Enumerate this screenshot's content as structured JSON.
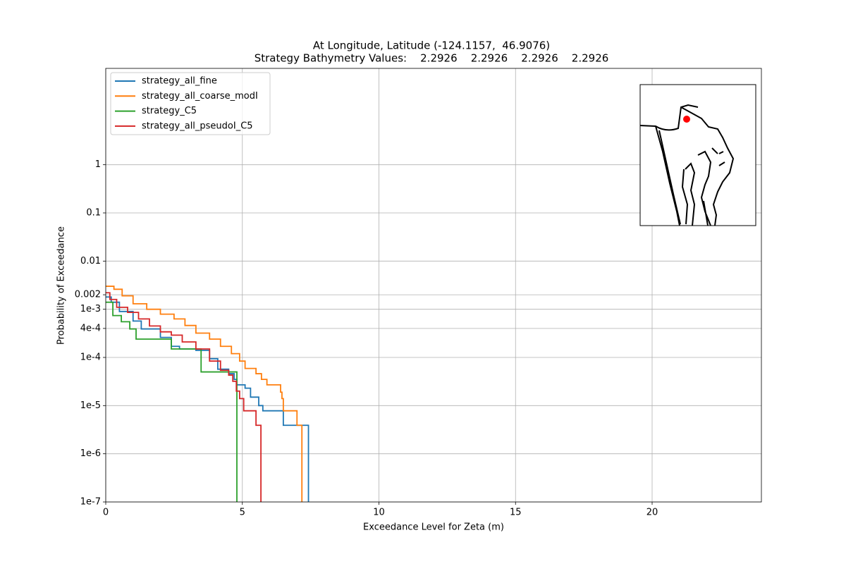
{
  "chart_data": {
    "type": "step",
    "title": "At Longitude, Latitude (-124.1157,  46.9076)",
    "subtitle": "Strategy Bathymetry Values:    2.2926    2.2926    2.2926    2.2926",
    "xlabel": "Exceedance Level for Zeta (m)",
    "ylabel": "Probability of Exceedance",
    "xlim": [
      0,
      24
    ],
    "xticks": [
      0,
      5,
      10,
      15,
      20
    ],
    "ylim": [
      1e-07,
      100
    ],
    "log_y": true,
    "yticks": [
      {
        "value": 1e-07,
        "label": "1e-7"
      },
      {
        "value": 1e-06,
        "label": "1e-6"
      },
      {
        "value": 1e-05,
        "label": "1e-5"
      },
      {
        "value": 0.0001,
        "label": "1e-4"
      },
      {
        "value": 0.0004,
        "label": "4e-4"
      },
      {
        "value": 0.001,
        "label": "1e-3"
      },
      0.002,
      0.01,
      0.1,
      1
    ],
    "grid": true,
    "legend": "upper left",
    "series": [
      {
        "name": "strategy_all_fine",
        "color": "#1f77b4",
        "x": [
          0,
          0.2,
          0.5,
          1.0,
          1.3,
          2.0,
          2.4,
          2.7,
          3.3,
          3.8,
          4.1,
          4.5,
          4.7,
          4.8,
          5.1,
          5.3,
          5.6,
          5.75,
          6.5,
          7.42
        ],
        "values": [
          0.0018,
          0.0014,
          0.0009,
          0.00057,
          0.00039,
          0.00026,
          0.00017,
          0.00015,
          0.00014,
          9.4e-05,
          5.7e-05,
          4.6e-05,
          3.5e-05,
          2.7e-05,
          2.3e-05,
          1.5e-05,
          1e-05,
          7.8e-06,
          3.9e-06,
          0
        ]
      },
      {
        "name": "strategy_all_coarse_modI",
        "color": "#ff7f0e",
        "x": [
          0,
          0.3,
          0.6,
          1.0,
          1.5,
          2.0,
          2.5,
          2.9,
          3.3,
          3.8,
          4.2,
          4.6,
          4.9,
          5.1,
          5.5,
          5.7,
          5.9,
          6.4,
          6.45,
          6.5,
          7.0,
          7.18
        ],
        "values": [
          0.003,
          0.0026,
          0.0019,
          0.0013,
          0.001,
          0.00079,
          0.00063,
          0.00046,
          0.00032,
          0.00024,
          0.00017,
          0.00012,
          8.4e-05,
          5.9e-05,
          4.6e-05,
          3.5e-05,
          2.7e-05,
          1.9e-05,
          1.4e-05,
          7.8e-06,
          3.9e-06,
          0
        ]
      },
      {
        "name": "strategy_C5",
        "color": "#2ca02c",
        "x": [
          0,
          0.26,
          0.57,
          0.88,
          1.11,
          2.4,
          3.49,
          4.8
        ],
        "values": [
          0.0014,
          0.00074,
          0.00055,
          0.00039,
          0.00024,
          0.00015,
          5e-05,
          0
        ]
      },
      {
        "name": "strategy_all_pseudoI_C5",
        "color": "#d62728",
        "x": [
          0,
          0.15,
          0.4,
          0.8,
          1.2,
          1.6,
          2.0,
          2.4,
          2.8,
          3.3,
          3.8,
          4.2,
          4.5,
          4.65,
          4.78,
          4.9,
          5.05,
          5.5,
          5.68
        ],
        "values": [
          0.0022,
          0.0016,
          0.0011,
          0.00086,
          0.00063,
          0.00045,
          0.00034,
          0.00029,
          0.00021,
          0.00015,
          8.4e-05,
          5.4e-05,
          4.3e-05,
          3.2e-05,
          2e-05,
          1.4e-05,
          7.8e-06,
          3.9e-06,
          0
        ]
      }
    ]
  }
}
